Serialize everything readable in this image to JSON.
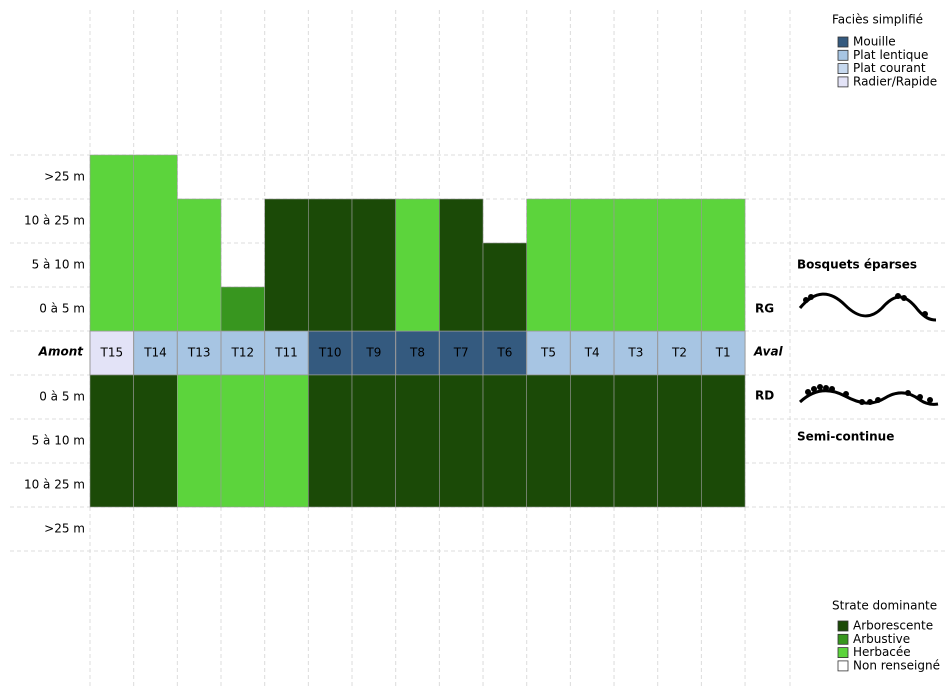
{
  "chart_data": {
    "type": "riparian-profile",
    "transects": [
      "T15",
      "T14",
      "T13",
      "T12",
      "T11",
      "T10",
      "T9",
      "T8",
      "T7",
      "T6",
      "T5",
      "T4",
      "T3",
      "T2",
      "T1"
    ],
    "upstream_label": "Amont",
    "downstream_label": "Aval",
    "height_classes": [
      "0 à 5 m",
      "5 à 10 m",
      "10 à 25 m",
      ">25 m"
    ],
    "facies": [
      "Radier/Rapide",
      "Plat lentique",
      "Plat lentique",
      "Plat lentique",
      "Plat lentique",
      "Mouille",
      "Mouille",
      "Mouille",
      "Mouille",
      "Mouille",
      "Plat lentique",
      "Plat lentique",
      "Plat lentique",
      "Plat lentique",
      "Plat lentique"
    ],
    "banks": [
      {
        "name": "RG",
        "continuity": "Bosquets éparses",
        "levels": [
          4,
          4,
          3,
          1,
          3,
          3,
          3,
          3,
          3,
          2,
          3,
          3,
          3,
          3,
          3
        ],
        "strata": [
          "Herbacée",
          "Herbacée",
          "Herbacée",
          "Arbustive",
          "Arborescente",
          "Arborescente",
          "Arborescente",
          "Herbacée",
          "Arborescente",
          "Arborescente",
          "Herbacée",
          "Herbacée",
          "Herbacée",
          "Herbacée",
          "Herbacée"
        ]
      },
      {
        "name": "RD",
        "continuity": "Semi-continue",
        "levels": [
          3,
          3,
          3,
          3,
          3,
          3,
          3,
          3,
          3,
          3,
          3,
          3,
          3,
          3,
          3
        ],
        "strata": [
          "Arborescente",
          "Arborescente",
          "Herbacée",
          "Herbacée",
          "Herbacée",
          "Arborescente",
          "Arborescente",
          "Arborescente",
          "Arborescente",
          "Arborescente",
          "Arborescente",
          "Arborescente",
          "Arborescente",
          "Arborescente",
          "Arborescente"
        ]
      }
    ],
    "facies_legend": {
      "title": "Faciès simplifié",
      "items": [
        {
          "name": "Mouille",
          "color": "#345a7f"
        },
        {
          "name": "Plat lentique",
          "color": "#a7c5e3"
        },
        {
          "name": "Plat courant",
          "color": "#c7d9ef"
        },
        {
          "name": "Radier/Rapide",
          "color": "#e3e3f7"
        }
      ]
    },
    "strata_legend": {
      "title": "Strate dominante",
      "items": [
        {
          "name": "Arborescente",
          "color": "#1b4a07"
        },
        {
          "name": "Arbustive",
          "color": "#38961f"
        },
        {
          "name": "Herbacée",
          "color": "#5cd43c"
        },
        {
          "name": "Non renseigné",
          "color": "#ffffff"
        }
      ]
    }
  }
}
